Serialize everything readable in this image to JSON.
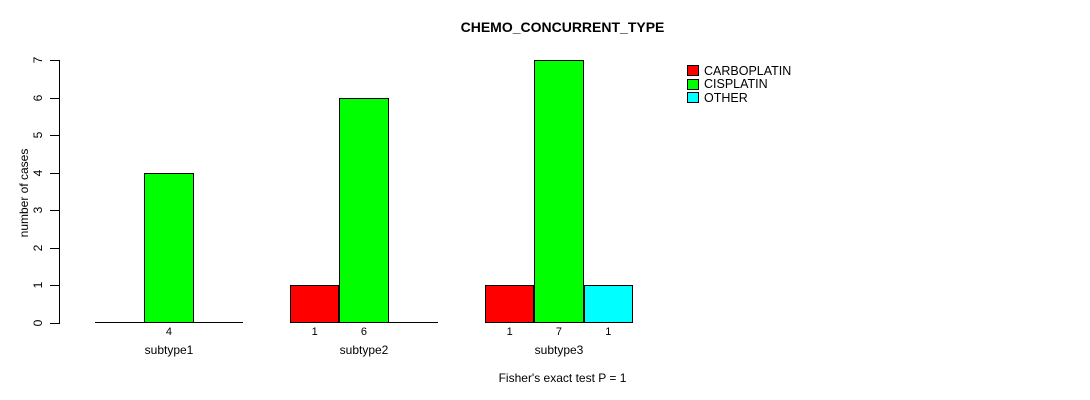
{
  "chart_data": {
    "type": "bar",
    "title": "CHEMO_CONCURRENT_TYPE",
    "footnote": "Fisher's exact test P = 1",
    "ylabel": "number of cases",
    "xlabel": "",
    "ylim": [
      0,
      7
    ],
    "yticks": [
      0,
      1,
      2,
      3,
      4,
      5,
      6,
      7
    ],
    "categories": [
      "subtype1",
      "subtype2",
      "subtype3"
    ],
    "series": [
      {
        "name": "CARBOPLATIN",
        "color": "#ff0000",
        "values": [
          0,
          1,
          1
        ]
      },
      {
        "name": "CISPLATIN",
        "color": "#00ff00",
        "values": [
          4,
          6,
          7
        ]
      },
      {
        "name": "OTHER",
        "color": "#00ffff",
        "values": [
          0,
          0,
          1
        ]
      }
    ],
    "bar_value_labels_shown_for_nonzero": true,
    "legend_position": "top-right",
    "grid": false,
    "background": "#ffffff",
    "axis_color": "#000000"
  }
}
